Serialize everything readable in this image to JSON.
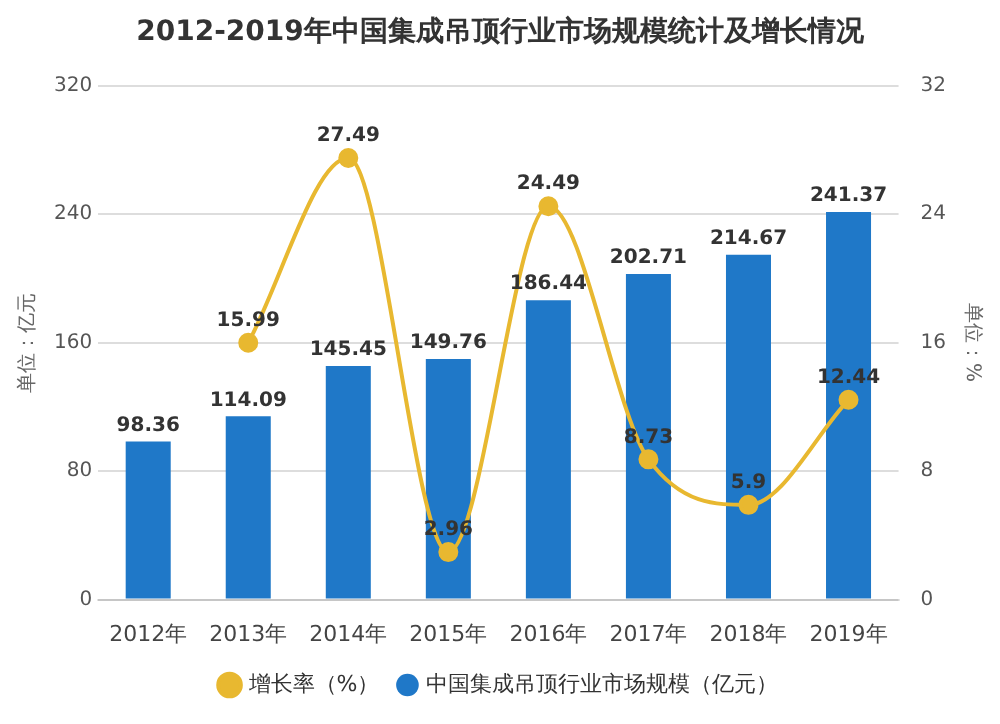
{
  "chart_data": {
    "type": "bar",
    "title": "2012-2019年中国集成吊顶行业市场规模统计及增长情况",
    "ylabel": "单位：亿元",
    "y2label": "单位：%",
    "categories": [
      "2012年",
      "2013年",
      "2014年",
      "2015年",
      "2016年",
      "2017年",
      "2018年",
      "2019年"
    ],
    "series": [
      {
        "name": "中国集成吊顶行业市场规模（亿元）",
        "color": "#1f78c8",
        "values": [
          98.36,
          114.09,
          145.45,
          149.76,
          186.44,
          202.71,
          214.67,
          241.37
        ]
      },
      {
        "name": "增长率（%）",
        "type": "line",
        "axis": "y2",
        "color": "#e8b830",
        "marker": "circle",
        "values": [
          null,
          15.99,
          27.49,
          2.96,
          24.49,
          8.73,
          5.9,
          12.44
        ]
      }
    ],
    "ylim": [
      0,
      320
    ],
    "yticks": [
      0,
      80,
      160,
      240,
      320
    ],
    "y2lim": [
      0,
      32
    ],
    "y2ticks": [
      0,
      8,
      16,
      24,
      32
    ],
    "grid": "y",
    "legend": "bottom",
    "data_labels": true
  }
}
